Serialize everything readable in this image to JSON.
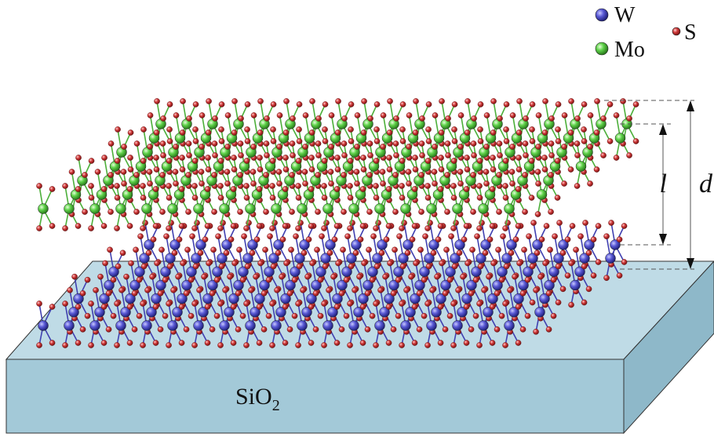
{
  "legend": {
    "items": [
      {
        "element": "W",
        "color": "#5a5ad6"
      },
      {
        "element": "Mo",
        "color": "#5fd24a"
      },
      {
        "element": "S",
        "color": "#d23a3a"
      }
    ]
  },
  "substrate": {
    "label_main": "SiO",
    "label_subscript": "2",
    "top_color": "#bfdbe6",
    "front_color": "#a3c9d8",
    "side_color": "#8eb8c9"
  },
  "dimensions": {
    "l_label": "l",
    "d_label": "d"
  },
  "layers": {
    "top_metal": "Mo",
    "bottom_metal": "W",
    "chalcogen": "S",
    "bond_color_top": "#4caf3a",
    "bond_color_bottom": "#4040b0"
  }
}
